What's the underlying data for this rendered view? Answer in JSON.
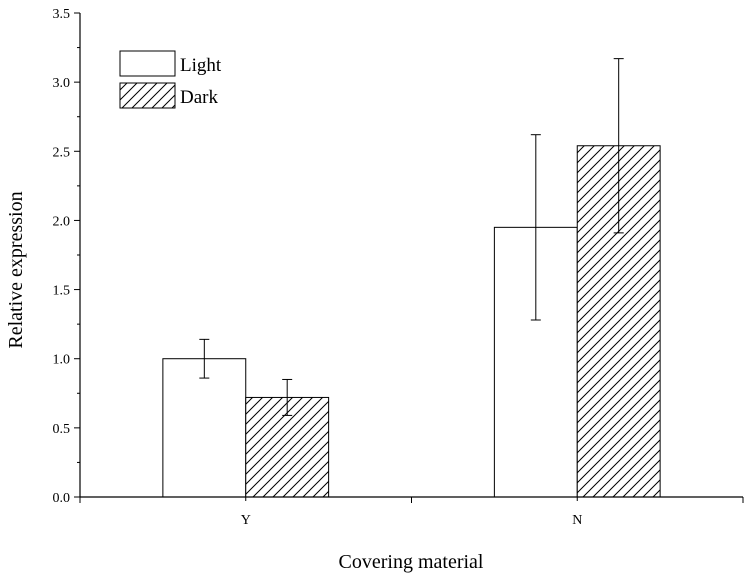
{
  "chart_data": {
    "type": "bar",
    "categories": [
      "Y",
      "N"
    ],
    "series": [
      {
        "name": "Light",
        "values": [
          1.0,
          1.95
        ],
        "errors": [
          0.14,
          0.67
        ],
        "fill": "#ffffff",
        "pattern": "none"
      },
      {
        "name": "Dark",
        "values": [
          0.72,
          2.54
        ],
        "errors": [
          0.13,
          0.63
        ],
        "fill": "#ffffff",
        "pattern": "diagonal-hatch"
      }
    ],
    "xlabel": "Covering material",
    "ylabel": "Relative expression",
    "ylim": [
      0,
      3.5
    ],
    "yticks": [
      "0.0",
      "0.5",
      "1.0",
      "1.5",
      "2.0",
      "2.5",
      "3.0",
      "3.5"
    ],
    "grid": false,
    "legend_position": "top-left",
    "colors": {
      "stroke": "#000000",
      "background": "#ffffff"
    }
  }
}
